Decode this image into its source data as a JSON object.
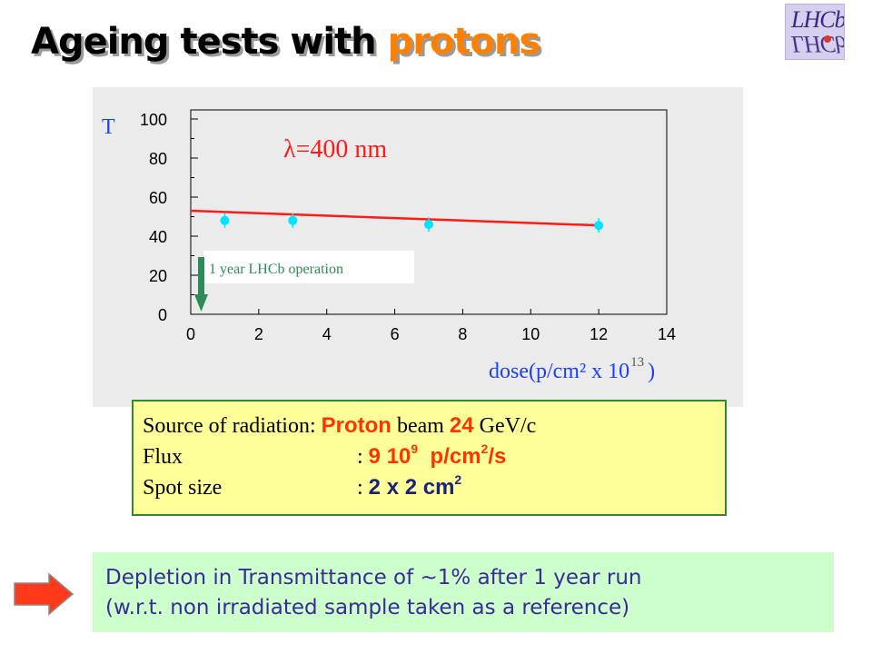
{
  "slide": {
    "title_prefix": "Ageing tests with ",
    "title_accent": "protons",
    "logo_text": "LHCb"
  },
  "chart_data": {
    "type": "scatter",
    "ylabel": "T",
    "xlabel": "dose(p/cm² x 10",
    "xlabel_exponent": "13",
    "xlabel_close": ")",
    "x_ticks": [
      "0",
      "2",
      "4",
      "6",
      "8",
      "10",
      "12",
      "14"
    ],
    "y_ticks": [
      "0",
      "20",
      "40",
      "60",
      "80",
      "100"
    ],
    "xlim": [
      0,
      14
    ],
    "ylim": [
      0,
      100
    ],
    "points": [
      {
        "x": 1,
        "y": 48
      },
      {
        "x": 3,
        "y": 48
      },
      {
        "x": 7,
        "y": 46
      },
      {
        "x": 12,
        "y": 45.5
      }
    ],
    "fit_line": {
      "x1": 0,
      "y1": 53,
      "x2": 12,
      "y2": 45.5
    },
    "annotation_lambda": "λ=400 nm",
    "annotation_operation": "1 year LHCb operation",
    "colors": {
      "points": "#00e5ff",
      "fit": "#ff1a1a",
      "axis_labels": "#1a3fff",
      "arrow": "#2e8b57"
    }
  },
  "info": {
    "source_label": "Source of radiation:",
    "source_proton": "Proton",
    "source_beam": "beam",
    "source_energy": "24",
    "source_unit": "GeV/c",
    "flux_label": "Flux",
    "flux_sep": ":",
    "flux_value": "9 10",
    "flux_exp": "9",
    "flux_unit": "p/cm",
    "flux_unit_exp": "2",
    "flux_unit_end": "/s",
    "spot_label": "Spot size",
    "spot_sep": ":",
    "spot_value": "2 x 2  cm",
    "spot_exp": "2"
  },
  "note": {
    "line1": "Depletion in Transmittance of ~1% after 1 year run",
    "line2": "(w.r.t. non irradiated sample taken as a reference)"
  }
}
